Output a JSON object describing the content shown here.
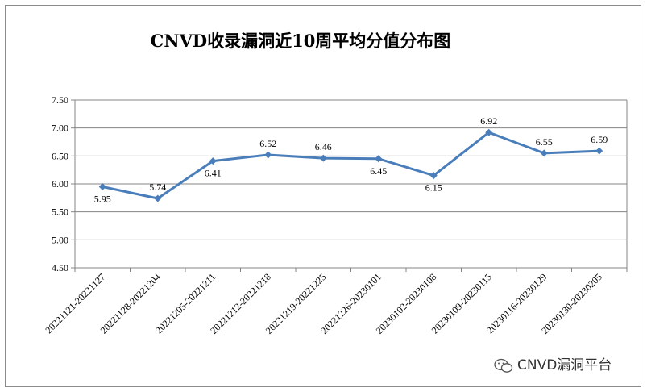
{
  "chart_data": {
    "type": "line",
    "title": "CNVD收录漏洞近10周平均分值分布图",
    "categories": [
      "20221121-20221127",
      "20221128-20221204",
      "20221205-20221211",
      "20221212-20221218",
      "20221219-20221225",
      "20221226-20230101",
      "20230102-20230108",
      "20230109-20230115",
      "20230116-20230129",
      "20230130-20230205"
    ],
    "values": [
      5.95,
      5.74,
      6.41,
      6.52,
      6.46,
      6.45,
      6.15,
      6.92,
      6.55,
      6.59
    ],
    "value_labels": [
      "5.95",
      "5.74",
      "6.41",
      "6.52",
      "6.46",
      "6.45",
      "6.15",
      "6.92",
      "6.55",
      "6.59"
    ],
    "ylim": [
      4.5,
      7.5
    ],
    "yticks": [
      "4.50",
      "5.00",
      "5.50",
      "6.00",
      "6.50",
      "7.00",
      "7.50"
    ],
    "grid": true,
    "legend": "none",
    "line_color": "#4a7ebb"
  },
  "watermark": "CNVD漏洞平台",
  "watermark_icon": "wechat-icon"
}
